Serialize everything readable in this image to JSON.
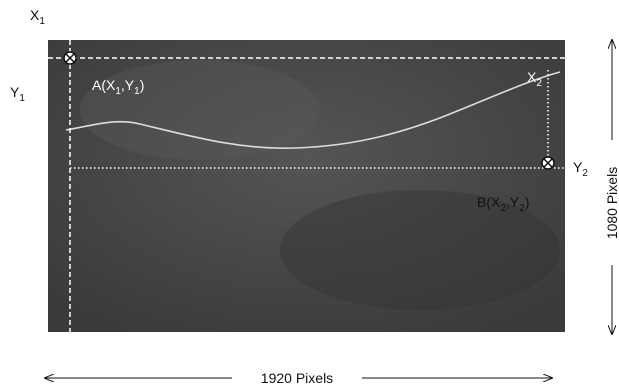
{
  "labels": {
    "x1": [
      "X",
      "1"
    ],
    "y1": [
      "Y",
      "1"
    ],
    "point_a": [
      "A(X",
      "1",
      ",Y",
      "1",
      ")"
    ],
    "x2": [
      "X",
      "2"
    ],
    "y2": [
      "Y",
      "2"
    ],
    "point_b": [
      "B(X",
      "2",
      ",Y",
      "2",
      ")"
    ]
  },
  "width_label": "1920 Pixels",
  "height_label": "1080 Pixels"
}
